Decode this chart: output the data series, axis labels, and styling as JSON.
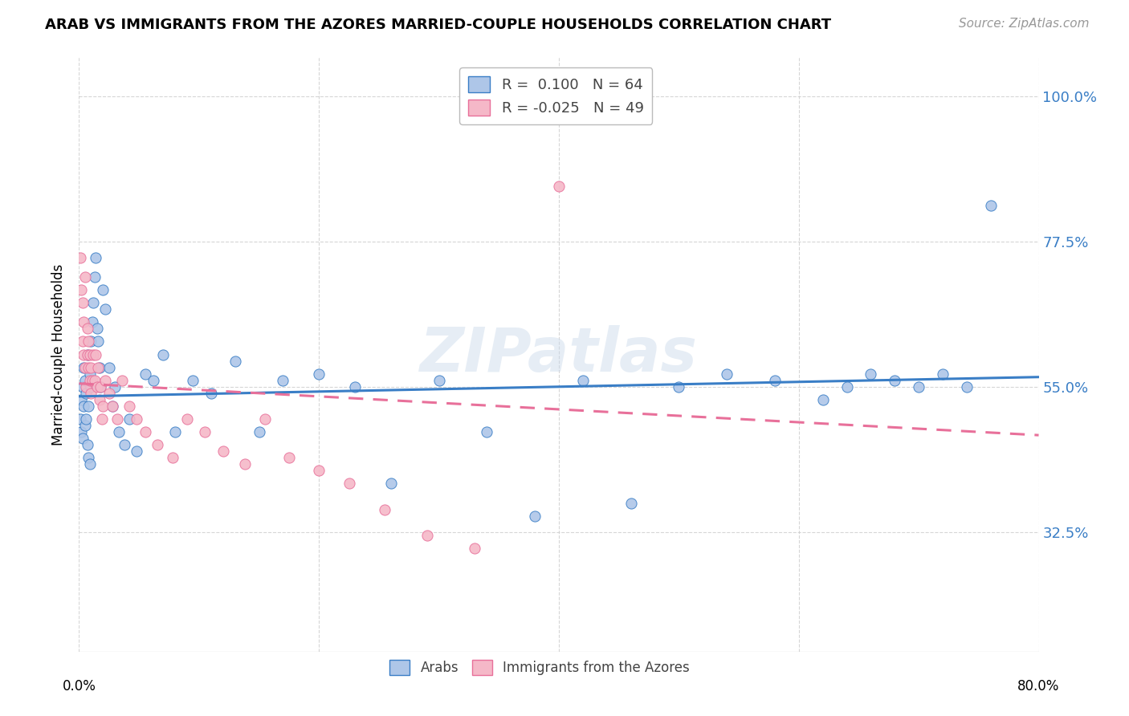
{
  "title": "ARAB VS IMMIGRANTS FROM THE AZORES MARRIED-COUPLE HOUSEHOLDS CORRELATION CHART",
  "source": "Source: ZipAtlas.com",
  "ylabel": "Married-couple Households",
  "yticks": [
    0.325,
    0.55,
    0.775,
    1.0
  ],
  "ytick_labels": [
    "32.5%",
    "55.0%",
    "77.5%",
    "100.0%"
  ],
  "xlim": [
    0.0,
    0.8
  ],
  "ylim": [
    0.14,
    1.06
  ],
  "arab_color": "#aec6e8",
  "azores_color": "#f5b8c8",
  "arab_line_color": "#3a7ec6",
  "azores_line_color": "#e8709a",
  "R_arab": 0.1,
  "N_arab": 64,
  "R_azores": -0.025,
  "N_azores": 49,
  "watermark": "ZIPatlas",
  "arab_trend_x0": 0.0,
  "arab_trend_y0": 0.535,
  "arab_trend_x1": 0.8,
  "arab_trend_y1": 0.565,
  "azores_trend_x0": 0.0,
  "azores_trend_y0": 0.555,
  "azores_trend_x1": 0.8,
  "azores_trend_y1": 0.475,
  "arab_points_x": [
    0.001,
    0.002,
    0.002,
    0.003,
    0.003,
    0.004,
    0.004,
    0.005,
    0.005,
    0.006,
    0.006,
    0.007,
    0.007,
    0.008,
    0.008,
    0.009,
    0.009,
    0.01,
    0.01,
    0.011,
    0.012,
    0.013,
    0.014,
    0.015,
    0.016,
    0.017,
    0.018,
    0.02,
    0.022,
    0.025,
    0.028,
    0.03,
    0.033,
    0.038,
    0.042,
    0.048,
    0.055,
    0.062,
    0.07,
    0.08,
    0.095,
    0.11,
    0.13,
    0.15,
    0.17,
    0.2,
    0.23,
    0.26,
    0.3,
    0.34,
    0.38,
    0.42,
    0.46,
    0.5,
    0.54,
    0.58,
    0.62,
    0.64,
    0.66,
    0.68,
    0.7,
    0.72,
    0.74,
    0.76
  ],
  "arab_points_y": [
    0.5,
    0.53,
    0.48,
    0.55,
    0.47,
    0.52,
    0.58,
    0.49,
    0.56,
    0.54,
    0.5,
    0.46,
    0.6,
    0.52,
    0.44,
    0.57,
    0.43,
    0.55,
    0.62,
    0.65,
    0.68,
    0.72,
    0.75,
    0.64,
    0.62,
    0.58,
    0.55,
    0.7,
    0.67,
    0.58,
    0.52,
    0.55,
    0.48,
    0.46,
    0.5,
    0.45,
    0.57,
    0.56,
    0.6,
    0.48,
    0.56,
    0.54,
    0.59,
    0.48,
    0.56,
    0.57,
    0.55,
    0.4,
    0.56,
    0.48,
    0.35,
    0.56,
    0.37,
    0.55,
    0.57,
    0.56,
    0.53,
    0.55,
    0.57,
    0.56,
    0.55,
    0.57,
    0.55,
    0.83
  ],
  "azores_points_x": [
    0.001,
    0.002,
    0.003,
    0.003,
    0.004,
    0.004,
    0.005,
    0.005,
    0.006,
    0.007,
    0.007,
    0.008,
    0.008,
    0.009,
    0.009,
    0.01,
    0.01,
    0.011,
    0.012,
    0.013,
    0.014,
    0.015,
    0.016,
    0.017,
    0.018,
    0.019,
    0.02,
    0.022,
    0.025,
    0.028,
    0.032,
    0.036,
    0.042,
    0.048,
    0.055,
    0.065,
    0.078,
    0.09,
    0.105,
    0.12,
    0.138,
    0.155,
    0.175,
    0.2,
    0.225,
    0.255,
    0.29,
    0.33,
    0.4
  ],
  "azores_points_y": [
    0.75,
    0.7,
    0.68,
    0.62,
    0.6,
    0.65,
    0.58,
    0.72,
    0.55,
    0.6,
    0.64,
    0.58,
    0.62,
    0.56,
    0.6,
    0.54,
    0.58,
    0.56,
    0.6,
    0.56,
    0.6,
    0.55,
    0.58,
    0.53,
    0.55,
    0.5,
    0.52,
    0.56,
    0.54,
    0.52,
    0.5,
    0.56,
    0.52,
    0.5,
    0.48,
    0.46,
    0.44,
    0.5,
    0.48,
    0.45,
    0.43,
    0.5,
    0.44,
    0.42,
    0.4,
    0.36,
    0.32,
    0.3,
    0.86
  ]
}
